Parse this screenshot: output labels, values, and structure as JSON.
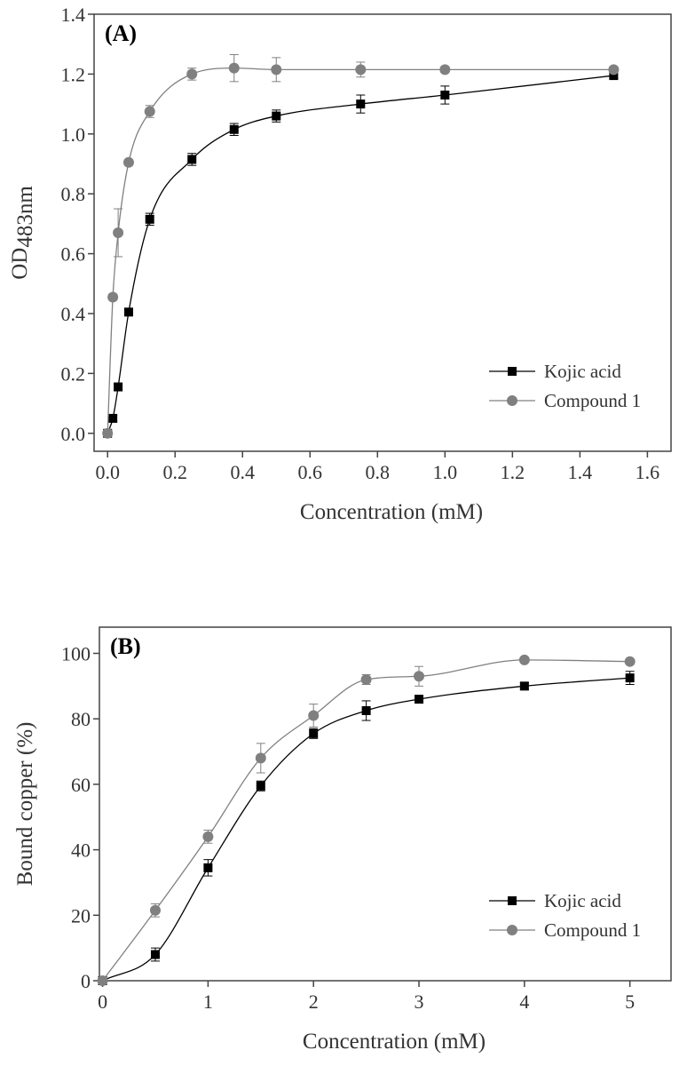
{
  "chart_data": [
    {
      "type": "line",
      "panel_label": "(A)",
      "x_label": "Concentration (mM)",
      "y_label": "OD",
      "y_label_subscript": "483nm",
      "xlim": [
        -0.04,
        1.67
      ],
      "ylim": [
        -0.06,
        1.4
      ],
      "xticks": [
        {
          "value": 0,
          "label": "0.0"
        },
        0.2,
        0.4,
        0.6,
        0.8,
        {
          "value": 1,
          "label": "1.0"
        },
        1.2,
        1.4,
        1.6
      ],
      "yticks": [
        {
          "value": 0,
          "label": "0.0"
        },
        0.2,
        0.4,
        0.6,
        0.8,
        {
          "value": 1,
          "label": "1.0"
        },
        1.2,
        1.4
      ],
      "legend": "lower right",
      "x": [
        0,
        0.0156,
        0.0313,
        0.0625,
        0.125,
        0.25,
        0.375,
        0.5,
        0.75,
        1.0,
        1.5
      ],
      "series": [
        {
          "name": "Kojic acid",
          "color": "#000000",
          "marker": "square",
          "values": [
            0.0,
            0.05,
            0.155,
            0.405,
            0.715,
            0.915,
            1.015,
            1.06,
            1.1,
            1.13,
            1.195
          ],
          "errors": [
            0.0,
            0.01,
            0.01,
            0.01,
            0.02,
            0.02,
            0.02,
            0.02,
            0.03,
            0.03,
            0.01
          ]
        },
        {
          "name": "Compound 1",
          "color": "#808080",
          "marker": "circle",
          "values": [
            0.0,
            0.455,
            0.67,
            0.905,
            1.075,
            1.2,
            1.22,
            1.215,
            1.215,
            1.215,
            1.215
          ],
          "errors": [
            0.0,
            0.01,
            0.08,
            0.01,
            0.02,
            0.02,
            0.045,
            0.04,
            0.025,
            0.01,
            0.01
          ]
        }
      ]
    },
    {
      "type": "line",
      "panel_label": "(B)",
      "x_label": "Concentration (mM)",
      "y_label": "Bound copper (%)",
      "xlim": [
        -0.03,
        5.39
      ],
      "ylim": [
        0,
        108
      ],
      "xticks": [
        0,
        1,
        2,
        3,
        4,
        5
      ],
      "yticks": [
        0,
        20,
        40,
        60,
        80,
        100
      ],
      "legend": "lower right",
      "x": [
        0,
        0.5,
        1,
        1.5,
        2,
        2.5,
        3,
        4,
        5
      ],
      "series": [
        {
          "name": "Kojic acid",
          "color": "#000000",
          "marker": "square",
          "values": [
            0,
            8,
            34.5,
            59.5,
            75.5,
            82.5,
            86,
            90,
            92.5
          ],
          "errors": [
            0,
            2,
            2.5,
            1.5,
            1.5,
            3,
            1,
            1,
            2
          ]
        },
        {
          "name": "Compound 1",
          "color": "#808080",
          "marker": "circle",
          "values": [
            0,
            21.5,
            44,
            68,
            81,
            92,
            93,
            98,
            97.5
          ],
          "errors": [
            0,
            2,
            2,
            4.5,
            3.5,
            1.5,
            3,
            0.5,
            0.5
          ]
        }
      ]
    }
  ]
}
